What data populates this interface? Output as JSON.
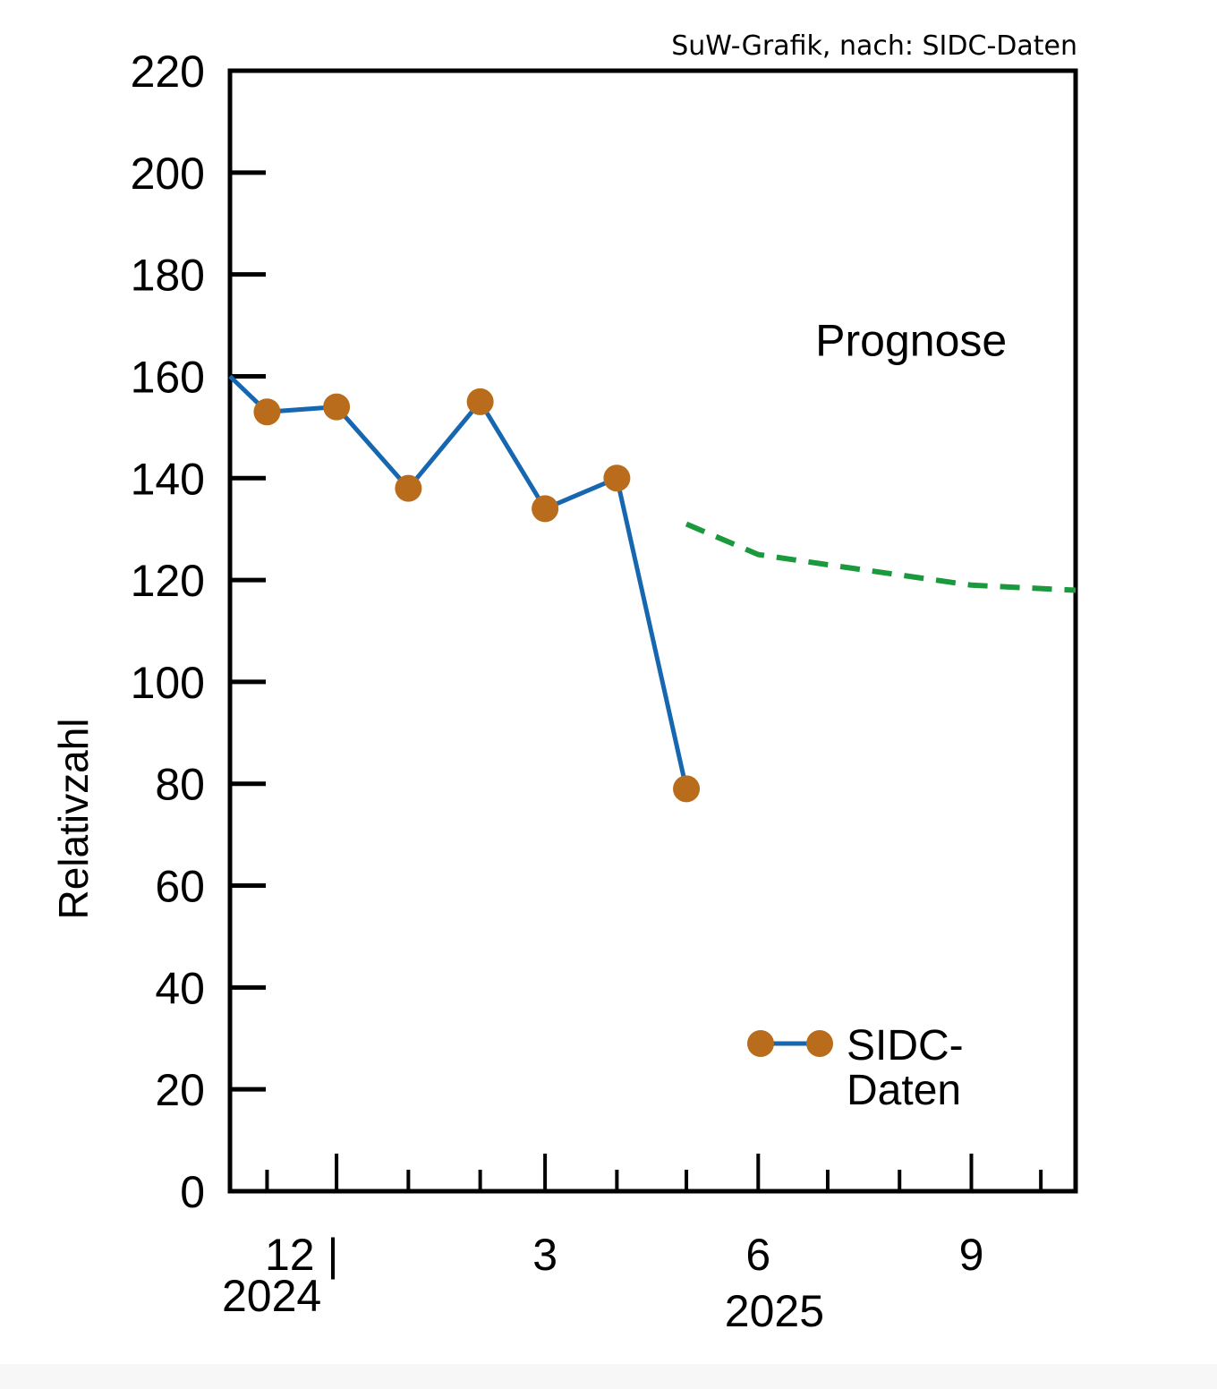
{
  "credit": "SuW-Grafik, nach: SIDC-Daten",
  "colors": {
    "line": "#1667b0",
    "marker": "#b86c1c",
    "forecast": "#1a9a3c",
    "axis": "#000000"
  },
  "chart_data": {
    "type": "line",
    "xlabel": "",
    "ylabel": "Relativzahl",
    "ylim": [
      0,
      220
    ],
    "xlim": [
      "2024-10-16",
      "2025-10-16"
    ],
    "y_ticks": [
      0,
      20,
      40,
      60,
      80,
      100,
      120,
      140,
      160,
      180,
      200,
      220
    ],
    "x_month_ticks": [
      "2024-11-01",
      "2024-12-01",
      "2025-01-01",
      "2025-02-01",
      "2025-03-01",
      "2025-04-01",
      "2025-05-01",
      "2025-06-01",
      "2025-07-01",
      "2025-08-01",
      "2025-09-01",
      "2025-10-01"
    ],
    "x_major_ticks": [
      "2024-12-01",
      "2025-03-01",
      "2025-06-01",
      "2025-09-01"
    ],
    "x_tick_labels": [
      {
        "label": "12 |",
        "date": "2024-11-16"
      },
      {
        "label": "3",
        "date": "2025-03-01"
      },
      {
        "label": "6",
        "date": "2025-06-01"
      },
      {
        "label": "9",
        "date": "2025-09-01"
      }
    ],
    "year_labels": [
      {
        "label": "2024",
        "date": "2024-11-03"
      },
      {
        "label": "2025",
        "date": "2025-06-08"
      }
    ],
    "series": [
      {
        "name": "SIDC-Daten",
        "style": "line-markers",
        "points": [
          {
            "x": "2024-10-16",
            "y": 160,
            "marker": false
          },
          {
            "x": "2024-11-01",
            "y": 153,
            "marker": true
          },
          {
            "x": "2024-12-01",
            "y": 154,
            "marker": true
          },
          {
            "x": "2025-01-01",
            "y": 138,
            "marker": true
          },
          {
            "x": "2025-02-01",
            "y": 155,
            "marker": true
          },
          {
            "x": "2025-03-01",
            "y": 134,
            "marker": true
          },
          {
            "x": "2025-04-01",
            "y": 140,
            "marker": true
          },
          {
            "x": "2025-05-01",
            "y": 79,
            "marker": true
          }
        ]
      },
      {
        "name": "Prognose",
        "style": "dashed",
        "points": [
          {
            "x": "2025-05-01",
            "y": 131
          },
          {
            "x": "2025-06-01",
            "y": 125
          },
          {
            "x": "2025-07-01",
            "y": 123
          },
          {
            "x": "2025-08-01",
            "y": 121
          },
          {
            "x": "2025-09-01",
            "y": 119
          },
          {
            "x": "2025-10-16",
            "y": 118
          }
        ]
      }
    ],
    "annotations": [
      {
        "text": "Prognose",
        "x": "2025-08-06",
        "y": 167
      }
    ],
    "legend": {
      "placement": "bottom-right",
      "label_lines": [
        "SIDC-",
        "Daten"
      ]
    },
    "grid": false
  }
}
